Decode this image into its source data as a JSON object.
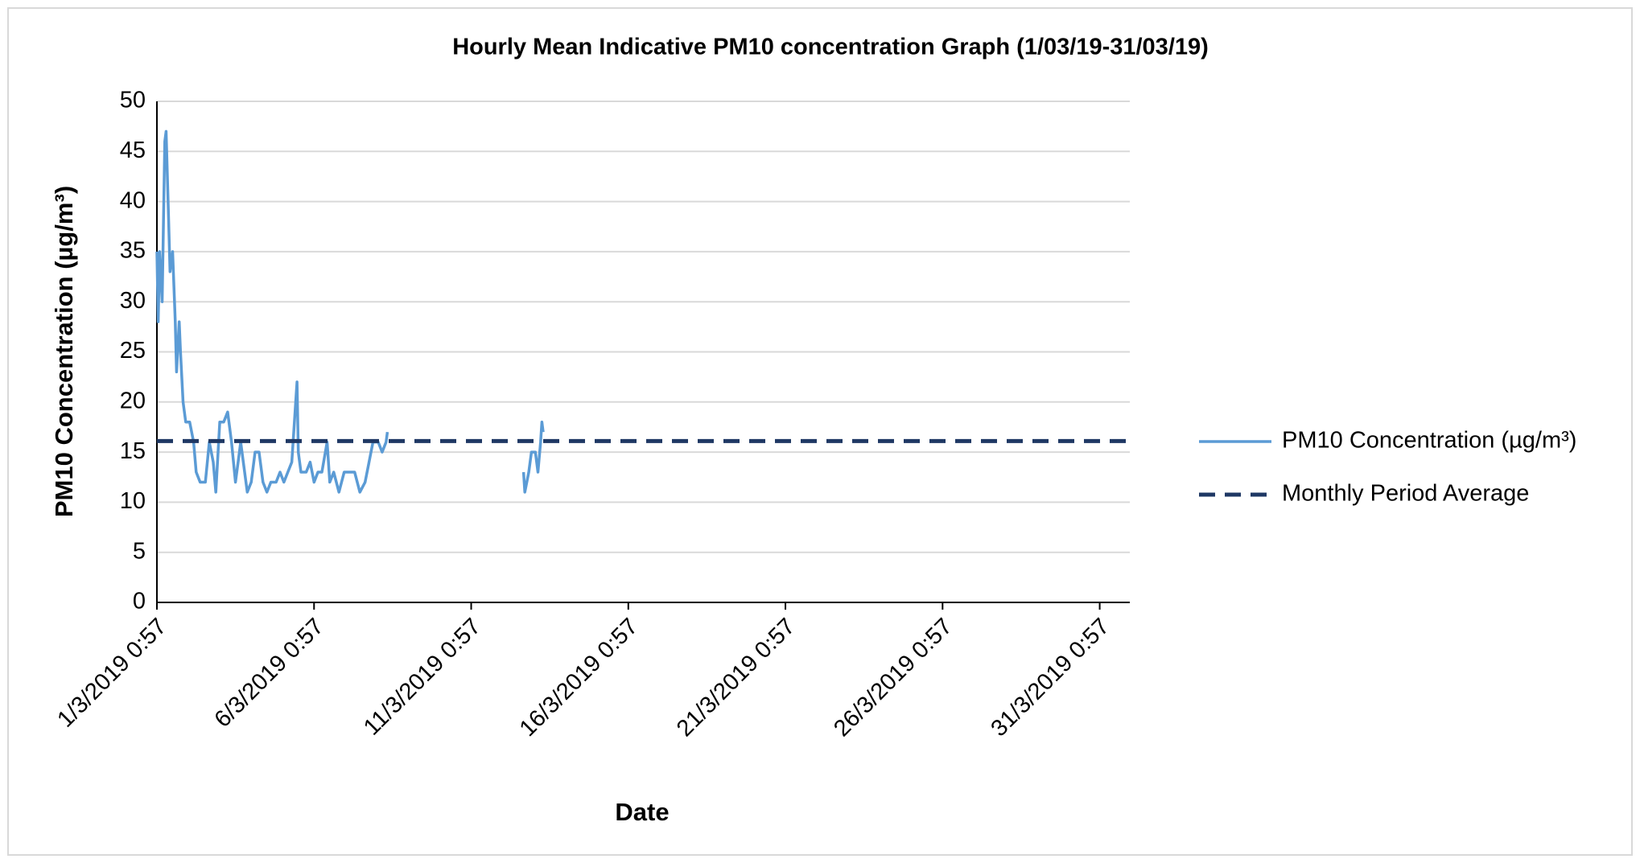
{
  "chart_data": {
    "type": "line",
    "title": "Hourly Mean Indicative PM10 concentration Graph (1/03/19-31/03/19)",
    "x_label": "Date",
    "y_label": "PM10 Concentration (µg/m³)",
    "x": [
      "1/3/2019 0:57",
      "1/3/2019 1:57",
      "1/3/2019 2:57",
      "1/3/2019 4:57",
      "1/3/2019 6:57",
      "1/3/2019 7:57",
      "1/3/2019 9:57",
      "1/3/2019 10:57",
      "1/3/2019 12:57",
      "1/3/2019 14:57",
      "1/3/2019 15:57",
      "1/3/2019 17:57",
      "1/3/2019 18:57",
      "1/3/2019 20:57",
      "1/3/2019 22:57",
      "2/3/2019 1:57",
      "2/3/2019 4:57",
      "2/3/2019 6:57",
      "2/3/2019 9:57",
      "2/3/2019 13:57",
      "2/3/2019 16:57",
      "2/3/2019 19:57",
      "2/3/2019 21:57",
      "3/3/2019 0:57",
      "3/3/2019 3:57",
      "3/3/2019 6:57",
      "3/3/2019 9:57",
      "3/3/2019 12:57",
      "3/3/2019 14:57",
      "3/3/2019 16:57",
      "3/3/2019 19:57",
      "3/3/2019 21:57",
      "4/3/2019 0:57",
      "4/3/2019 3:57",
      "4/3/2019 6:57",
      "4/3/2019 9:57",
      "4/3/2019 12:57",
      "4/3/2019 15:57",
      "4/3/2019 19:57",
      "4/3/2019 22:57",
      "5/3/2019 1:57",
      "5/3/2019 4:57",
      "5/3/2019 7:57",
      "5/3/2019 11:57",
      "5/3/2019 12:57",
      "5/3/2019 14:57",
      "5/3/2019 18:57",
      "5/3/2019 21:57",
      "6/3/2019 0:57",
      "6/3/2019 3:57",
      "6/3/2019 6:57",
      "6/3/2019 10:57",
      "6/3/2019 12:57",
      "6/3/2019 15:57",
      "6/3/2019 19:57",
      "6/3/2019 23:57",
      "7/3/2019 3:57",
      "7/3/2019 7:57",
      "7/3/2019 11:57",
      "7/3/2019 15:57",
      "7/3/2019 18:57",
      "7/3/2019 21:57",
      "8/3/2019 1:57",
      "8/3/2019 4:57",
      "8/3/2019 7:57",
      "8/3/2019 8:57",
      "10/3/2019 0:57",
      "12/3/2019 16:57",
      "12/3/2019 17:57",
      "12/3/2019 20:57",
      "12/3/2019 22:57",
      "13/3/2019 1:57",
      "13/3/2019 3:57",
      "13/3/2019 5:57",
      "13/3/2019 6:57",
      "13/3/2019 7:57"
    ],
    "series": [
      {
        "name": "PM10 Concentration (µg/m³)",
        "color": "#5b9bd5",
        "values": [
          35,
          28,
          35,
          30,
          46,
          47,
          38,
          33,
          35,
          28,
          23,
          28,
          25,
          20,
          18,
          18,
          16,
          13,
          12,
          12,
          16,
          14,
          11,
          18,
          18,
          19,
          16,
          12,
          14,
          16,
          13,
          11,
          12,
          15,
          15,
          12,
          11,
          12,
          12,
          13,
          12,
          13,
          14,
          22,
          15,
          13,
          13,
          14,
          12,
          13,
          13,
          16,
          12,
          13,
          11,
          13,
          13,
          13,
          11,
          12,
          14,
          16,
          16,
          15,
          16,
          17,
          null,
          13,
          11,
          13,
          15,
          15,
          13,
          16,
          18,
          17
        ]
      }
    ],
    "average": {
      "name": "Monthly Period Average",
      "color": "#1f3864",
      "value": 16.1
    },
    "xlim": [
      "1/3/2019 0:57",
      "31/3/2019 23:57"
    ],
    "xticks": [
      "1/3/2019 0:57",
      "6/3/2019 0:57",
      "11/3/2019 0:57",
      "16/3/2019 0:57",
      "21/3/2019 0:57",
      "26/3/2019 0:57",
      "31/3/2019 0:57"
    ],
    "ylim": [
      0,
      50
    ],
    "yticks": [
      0,
      5,
      10,
      15,
      20,
      25,
      30,
      35,
      40,
      45,
      50
    ],
    "grid": true,
    "legend": "right"
  }
}
